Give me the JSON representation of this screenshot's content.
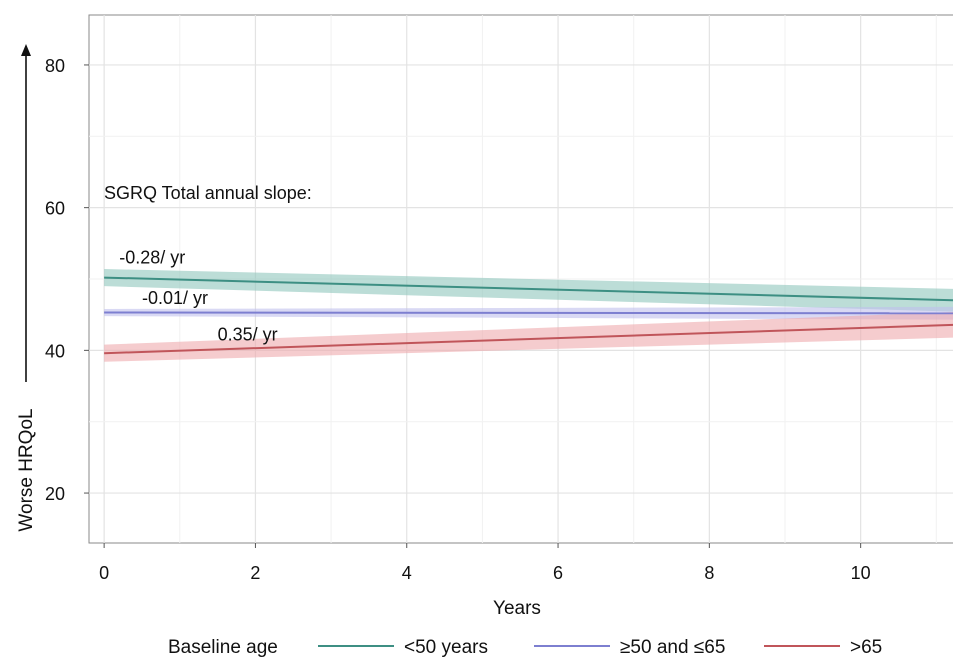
{
  "chart_data": {
    "type": "line",
    "title": "",
    "xlabel": "Years",
    "ylabel": "Worse HRQoL",
    "xlim": [
      -0.2,
      11.3
    ],
    "ylim": [
      13,
      87
    ],
    "xticks": [
      0,
      2,
      4,
      6,
      8,
      10
    ],
    "yticks": [
      20,
      40,
      60,
      80
    ],
    "grid": true,
    "legend": {
      "title": "Baseline age",
      "placement": "bottom"
    },
    "annotation_header": "SGRQ Total annual slope:",
    "series": [
      {
        "name": "<50 years",
        "color": "#3d8f83",
        "band_color": "#8fc7bd",
        "slope_label": "-0.28/ yr",
        "x": [
          0,
          11.3
        ],
        "y": [
          50.2,
          47.0
        ],
        "ci_lower": [
          49.0,
          45.4
        ],
        "ci_upper": [
          51.4,
          48.6
        ]
      },
      {
        "name": "≥50 and ≤65",
        "color": "#7d7fd0",
        "band_color": "#bfc0ec",
        "slope_label": "-0.01/ yr",
        "x": [
          0,
          11.3
        ],
        "y": [
          45.3,
          45.2
        ],
        "ci_lower": [
          44.8,
          44.3
        ],
        "ci_upper": [
          45.8,
          46.1
        ]
      },
      {
        "name": ">65",
        "color": "#c0555a",
        "band_color": "#eeaaae",
        "slope_label": "0.35/ yr",
        "x": [
          0,
          11.3
        ],
        "y": [
          39.6,
          43.6
        ],
        "ci_lower": [
          38.4,
          41.8
        ],
        "ci_upper": [
          40.8,
          45.4
        ]
      }
    ]
  }
}
